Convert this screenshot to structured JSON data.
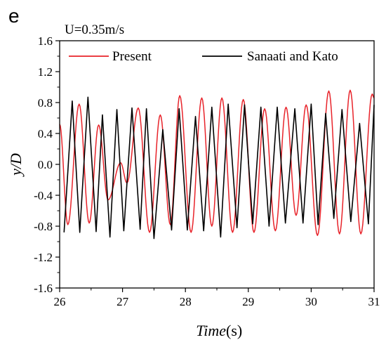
{
  "panel_label": "e",
  "chart_data": {
    "type": "line",
    "annotation": "U=0.35m/s",
    "xlabel": "Time",
    "xlabel_unit": "(s)",
    "ylabel": "y/D",
    "xlim": [
      26,
      31
    ],
    "ylim": [
      -1.6,
      1.6
    ],
    "x_ticks": [
      26,
      27,
      28,
      29,
      30,
      31
    ],
    "y_ticks": [
      -1.6,
      -1.2,
      -0.8,
      -0.4,
      0.0,
      0.4,
      0.8,
      1.2,
      1.6
    ],
    "x_tick_labels": [
      "26",
      "27",
      "28",
      "29",
      "30",
      "31"
    ],
    "y_tick_labels": [
      "-1.6",
      "-1.2",
      "-0.8",
      "-0.4",
      "0.0",
      "0.4",
      "0.8",
      "1.2",
      "1.6"
    ],
    "grid": false,
    "legend_position": "top",
    "series": [
      {
        "name": "Present",
        "color": "#e8232a",
        "extrema": [
          [
            26.0,
            0.52
          ],
          [
            26.13,
            -0.78
          ],
          [
            26.31,
            0.78
          ],
          [
            26.47,
            -0.76
          ],
          [
            26.62,
            0.51
          ],
          [
            26.77,
            -0.46
          ],
          [
            26.97,
            0.02
          ],
          [
            27.07,
            -0.24
          ],
          [
            27.25,
            0.73
          ],
          [
            27.43,
            -0.88
          ],
          [
            27.6,
            0.64
          ],
          [
            27.76,
            -0.78
          ],
          [
            27.91,
            0.89
          ],
          [
            28.09,
            -0.88
          ],
          [
            28.26,
            0.86
          ],
          [
            28.42,
            -0.8
          ],
          [
            28.58,
            0.86
          ],
          [
            28.75,
            -0.88
          ],
          [
            28.92,
            0.84
          ],
          [
            29.09,
            -0.88
          ],
          [
            29.26,
            0.72
          ],
          [
            29.43,
            -0.86
          ],
          [
            29.6,
            0.74
          ],
          [
            29.76,
            -0.66
          ],
          [
            29.92,
            0.77
          ],
          [
            30.1,
            -0.92
          ],
          [
            30.28,
            0.95
          ],
          [
            30.45,
            -0.9
          ],
          [
            30.62,
            0.96
          ],
          [
            30.79,
            -0.9
          ],
          [
            30.97,
            0.91
          ],
          [
            31.0,
            0.86
          ]
        ]
      },
      {
        "name": "Sanaati and Kato",
        "color": "#000000",
        "extrema": [
          [
            26.07,
            -0.88
          ],
          [
            26.2,
            0.82
          ],
          [
            26.32,
            -0.88
          ],
          [
            26.45,
            0.87
          ],
          [
            26.58,
            -0.87
          ],
          [
            26.68,
            0.64
          ],
          [
            26.8,
            -0.94
          ],
          [
            26.91,
            0.71
          ],
          [
            27.02,
            -0.86
          ],
          [
            27.15,
            0.73
          ],
          [
            27.28,
            -0.84
          ],
          [
            27.38,
            0.72
          ],
          [
            27.5,
            -0.96
          ],
          [
            27.64,
            0.45
          ],
          [
            27.78,
            -0.85
          ],
          [
            27.9,
            0.72
          ],
          [
            28.03,
            -0.85
          ],
          [
            28.16,
            0.62
          ],
          [
            28.29,
            -0.86
          ],
          [
            28.42,
            0.74
          ],
          [
            28.56,
            -0.94
          ],
          [
            28.68,
            0.78
          ],
          [
            28.82,
            -0.82
          ],
          [
            28.94,
            0.77
          ],
          [
            29.07,
            -0.77
          ],
          [
            29.2,
            0.74
          ],
          [
            29.33,
            -0.8
          ],
          [
            29.46,
            0.74
          ],
          [
            29.59,
            -0.76
          ],
          [
            29.74,
            0.72
          ],
          [
            29.87,
            -0.76
          ],
          [
            30.0,
            0.78
          ],
          [
            30.11,
            -0.78
          ],
          [
            30.23,
            0.66
          ],
          [
            30.36,
            -0.7
          ],
          [
            30.49,
            0.71
          ],
          [
            30.63,
            -0.74
          ],
          [
            30.77,
            0.53
          ],
          [
            30.91,
            -0.77
          ],
          [
            31.0,
            0.77
          ]
        ]
      }
    ]
  }
}
